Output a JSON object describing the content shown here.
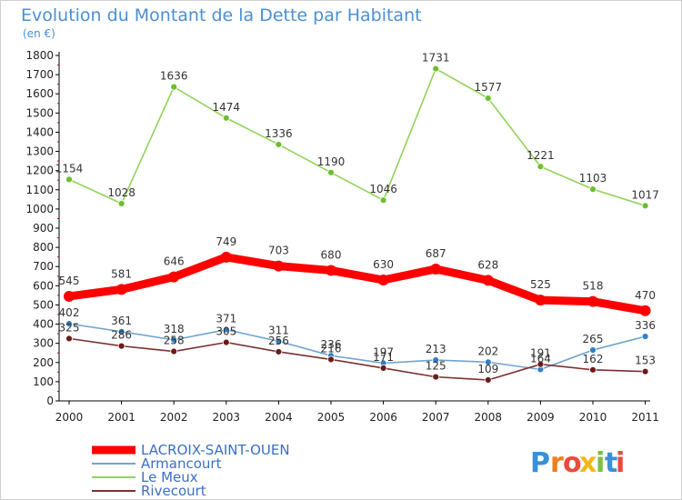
{
  "chart_data": {
    "type": "line",
    "title": "Evolution du Montant de la Dette par Habitant",
    "subtitle": "(en €)",
    "xlabel": "",
    "ylabel": "",
    "ylim": [
      0,
      1800
    ],
    "yticks": [
      0,
      100,
      200,
      300,
      400,
      500,
      600,
      700,
      800,
      900,
      1000,
      1100,
      1200,
      1300,
      1400,
      1500,
      1600,
      1700,
      1800
    ],
    "categories": [
      "2000",
      "2001",
      "2002",
      "2003",
      "2004",
      "2005",
      "2006",
      "2007",
      "2008",
      "2009",
      "2010",
      "2011"
    ],
    "grid": false,
    "legend_position": "bottom-left",
    "series": [
      {
        "name": "LACROIX-SAINT-OUEN",
        "color": "#ff0000",
        "marker": "#ff0000",
        "emphasis": true,
        "values": [
          545,
          581,
          646,
          749,
          703,
          680,
          630,
          687,
          628,
          525,
          518,
          470
        ]
      },
      {
        "name": "Armancourt",
        "color": "#6fa4d0",
        "marker": "#2f7fc6",
        "emphasis": false,
        "values": [
          402,
          361,
          318,
          371,
          311,
          236,
          197,
          213,
          202,
          164,
          265,
          336
        ]
      },
      {
        "name": "Le Meux",
        "color": "#92d25a",
        "marker": "#6cbf2e",
        "emphasis": false,
        "values": [
          1154,
          1028,
          1636,
          1474,
          1336,
          1190,
          1046,
          1731,
          1577,
          1221,
          1103,
          1017
        ]
      },
      {
        "name": "Rivecourt",
        "color": "#7a3030",
        "marker": "#6b1a1a",
        "emphasis": false,
        "values": [
          325,
          286,
          258,
          305,
          256,
          216,
          171,
          125,
          109,
          191,
          162,
          153
        ]
      }
    ]
  },
  "logo": {
    "text": "Proxiti",
    "letters": [
      {
        "ch": "P",
        "color": "#3c8fd8"
      },
      {
        "ch": "r",
        "color": "#f07d1a"
      },
      {
        "ch": "o",
        "color": "#e94b3c"
      },
      {
        "ch": "x",
        "color": "#f4b61a"
      },
      {
        "ch": "i",
        "color": "#7cc043"
      },
      {
        "ch": "t",
        "color": "#3c8fd8"
      },
      {
        "ch": "i",
        "color": "#e94b3c"
      }
    ]
  }
}
